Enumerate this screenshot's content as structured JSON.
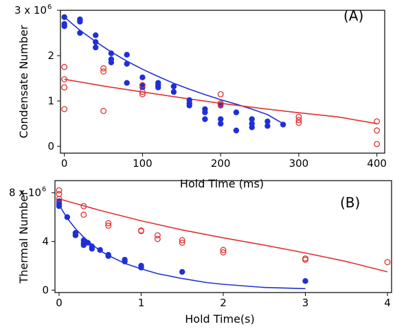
{
  "colors": {
    "blue": "#1f2fd8",
    "red": "#e03030"
  },
  "chart_data": [
    {
      "type": "scatter",
      "panel_label": "(A)",
      "xlabel": "Hold Time (ms)",
      "ylabel": "Condensate Number",
      "xlim": [
        -5,
        410
      ],
      "ylim": [
        -0.15,
        3.0
      ],
      "x_ticks": [
        "0",
        "100",
        "200",
        "300",
        "400"
      ],
      "x_tick_values": [
        0,
        100,
        200,
        300,
        400
      ],
      "y_ticks": [
        "0",
        "1",
        "2"
      ],
      "y_tick_values": [
        0,
        1,
        2
      ],
      "y_top_tick": {
        "base": "3 x 10",
        "exponent": "6",
        "value": 3
      },
      "grid": false,
      "series": [
        {
          "color": "blue",
          "marker": "filled-circle",
          "points": [
            [
              0,
              2.85
            ],
            [
              0,
              2.7
            ],
            [
              0,
              2.65
            ],
            [
              20,
              2.8
            ],
            [
              20,
              2.75
            ],
            [
              20,
              2.5
            ],
            [
              40,
              2.45
            ],
            [
              40,
              2.3
            ],
            [
              40,
              2.18
            ],
            [
              60,
              2.05
            ],
            [
              60,
              1.92
            ],
            [
              60,
              1.85
            ],
            [
              80,
              2.02
            ],
            [
              80,
              1.82
            ],
            [
              80,
              1.4
            ],
            [
              100,
              1.52
            ],
            [
              100,
              1.35
            ],
            [
              100,
              1.3
            ],
            [
              120,
              1.4
            ],
            [
              120,
              1.35
            ],
            [
              120,
              1.3
            ],
            [
              140,
              1.32
            ],
            [
              140,
              1.2
            ],
            [
              160,
              1.02
            ],
            [
              160,
              0.95
            ],
            [
              160,
              0.9
            ],
            [
              180,
              0.82
            ],
            [
              180,
              0.75
            ],
            [
              180,
              0.6
            ],
            [
              200,
              0.9
            ],
            [
              200,
              0.6
            ],
            [
              200,
              0.5
            ],
            [
              220,
              0.75
            ],
            [
              220,
              0.35
            ],
            [
              240,
              0.6
            ],
            [
              240,
              0.5
            ],
            [
              240,
              0.42
            ],
            [
              260,
              0.55
            ],
            [
              260,
              0.45
            ],
            [
              280,
              0.48
            ]
          ],
          "fit": [
            [
              0,
              2.85
            ],
            [
              20,
              2.56
            ],
            [
              40,
              2.31
            ],
            [
              60,
              2.08
            ],
            [
              80,
              1.88
            ],
            [
              100,
              1.7
            ],
            [
              120,
              1.54
            ],
            [
              140,
              1.39
            ],
            [
              160,
              1.26
            ],
            [
              180,
              1.14
            ],
            [
              200,
              1.03
            ],
            [
              220,
              0.93
            ],
            [
              240,
              0.82
            ],
            [
              260,
              0.7
            ],
            [
              270,
              0.6
            ],
            [
              280,
              0.5
            ]
          ]
        },
        {
          "color": "red",
          "marker": "open-circle",
          "points": [
            [
              0,
              1.75
            ],
            [
              0,
              1.48
            ],
            [
              0,
              1.3
            ],
            [
              0,
              0.82
            ],
            [
              50,
              1.72
            ],
            [
              50,
              1.65
            ],
            [
              50,
              0.78
            ],
            [
              100,
              1.35
            ],
            [
              100,
              1.2
            ],
            [
              100,
              1.15
            ],
            [
              200,
              1.15
            ],
            [
              200,
              0.95
            ],
            [
              200,
              0.92
            ],
            [
              300,
              0.65
            ],
            [
              300,
              0.58
            ],
            [
              300,
              0.52
            ],
            [
              400,
              0.55
            ],
            [
              400,
              0.35
            ],
            [
              400,
              0.05
            ]
          ],
          "fit": [
            [
              0,
              1.48
            ],
            [
              50,
              1.33
            ],
            [
              100,
              1.2
            ],
            [
              150,
              1.07
            ],
            [
              200,
              0.95
            ],
            [
              250,
              0.84
            ],
            [
              300,
              0.74
            ],
            [
              350,
              0.65
            ],
            [
              400,
              0.5
            ]
          ]
        }
      ]
    },
    {
      "type": "scatter",
      "panel_label": "(B)",
      "xlabel": "Hold Time(s)",
      "ylabel": "Thermal Number",
      "xlim": [
        -0.05,
        4.05
      ],
      "ylim": [
        -0.2,
        9.0
      ],
      "x_ticks": [
        "0",
        "1",
        "2",
        "3",
        "4"
      ],
      "x_tick_values": [
        0,
        1,
        2,
        3,
        4
      ],
      "y_ticks": [
        "0",
        "4"
      ],
      "y_tick_values": [
        0,
        4
      ],
      "y_top_tick": {
        "base": "8 x 10",
        "exponent": "6",
        "value": 8
      },
      "grid": false,
      "series": [
        {
          "color": "blue",
          "marker": "filled-circle",
          "points": [
            [
              0,
              7.3
            ],
            [
              0,
              7.1
            ],
            [
              0,
              6.9
            ],
            [
              0.1,
              6.0
            ],
            [
              0.2,
              4.7
            ],
            [
              0.2,
              4.5
            ],
            [
              0.3,
              4.1
            ],
            [
              0.3,
              3.85
            ],
            [
              0.3,
              3.7
            ],
            [
              0.35,
              3.9
            ],
            [
              0.4,
              3.6
            ],
            [
              0.4,
              3.4
            ],
            [
              0.5,
              3.3
            ],
            [
              0.6,
              2.9
            ],
            [
              0.6,
              2.8
            ],
            [
              0.8,
              2.5
            ],
            [
              0.8,
              2.35
            ],
            [
              1.0,
              2.0
            ],
            [
              1.0,
              1.85
            ],
            [
              1.5,
              1.5
            ],
            [
              3.0,
              0.75
            ]
          ],
          "fit": [
            [
              0,
              7.0
            ],
            [
              0.1,
              5.9
            ],
            [
              0.2,
              5.05
            ],
            [
              0.3,
              4.35
            ],
            [
              0.4,
              3.75
            ],
            [
              0.5,
              3.25
            ],
            [
              0.6,
              2.85
            ],
            [
              0.8,
              2.2
            ],
            [
              1.0,
              1.75
            ],
            [
              1.2,
              1.35
            ],
            [
              1.5,
              0.95
            ],
            [
              1.8,
              0.62
            ],
            [
              2.0,
              0.48
            ],
            [
              2.5,
              0.22
            ],
            [
              3.0,
              0.12
            ]
          ]
        },
        {
          "color": "red",
          "marker": "open-circle",
          "points": [
            [
              0,
              8.2
            ],
            [
              0,
              7.9
            ],
            [
              0,
              7.5
            ],
            [
              0.3,
              6.9
            ],
            [
              0.3,
              6.2
            ],
            [
              0.6,
              5.5
            ],
            [
              0.6,
              5.3
            ],
            [
              1.0,
              4.9
            ],
            [
              1.0,
              4.85
            ],
            [
              1.2,
              4.5
            ],
            [
              1.2,
              4.2
            ],
            [
              1.5,
              4.1
            ],
            [
              1.5,
              3.9
            ],
            [
              2.0,
              3.3
            ],
            [
              2.0,
              3.1
            ],
            [
              3.0,
              2.6
            ],
            [
              3.0,
              2.5
            ],
            [
              4.0,
              2.3
            ]
          ],
          "fit": [
            [
              0,
              7.5
            ],
            [
              0.5,
              6.55
            ],
            [
              1.0,
              5.7
            ],
            [
              1.5,
              4.95
            ],
            [
              2.0,
              4.3
            ],
            [
              2.5,
              3.7
            ],
            [
              3.0,
              3.05
            ],
            [
              3.5,
              2.35
            ],
            [
              4.0,
              1.5
            ]
          ]
        }
      ]
    }
  ]
}
